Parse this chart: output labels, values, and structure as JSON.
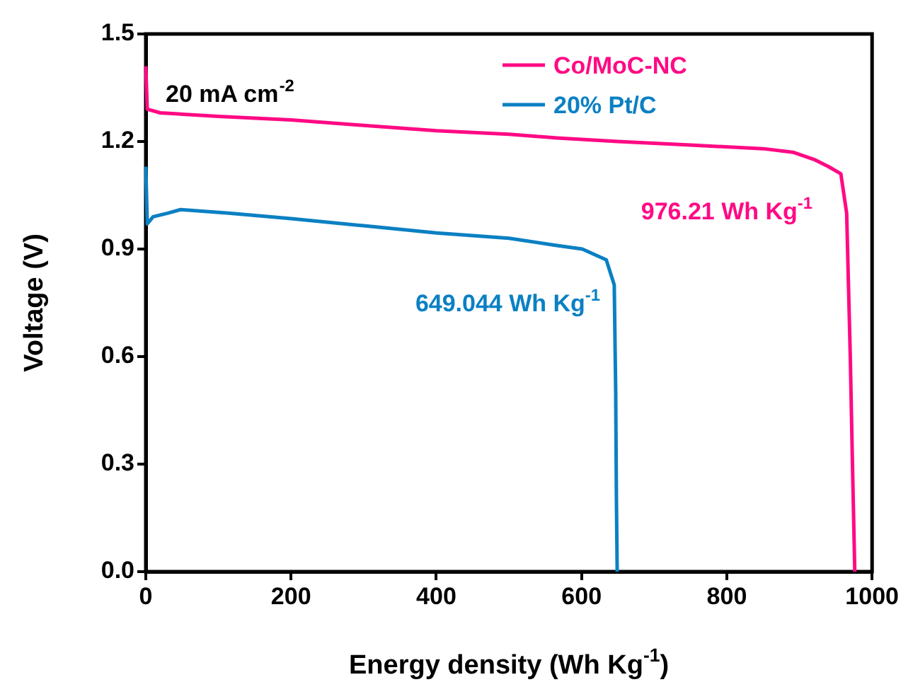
{
  "chart_data": {
    "type": "line",
    "xlabel": "Energy density (Wh Kg$^{-1}$)",
    "ylabel": "Voltage (V)",
    "annotations": [
      "20 mA cm$^{-2}$",
      "976.21 Wh Kg$^{-1}$",
      "649.044 Wh Kg$^{-1}$"
    ],
    "series": [
      {
        "name": "Co/MoC-NC",
        "color": "#ff0a84",
        "x": [
          0,
          2,
          20,
          100,
          200,
          300,
          400,
          500,
          566,
          650,
          750,
          850,
          891,
          920,
          940,
          957,
          965,
          970,
          973,
          976.21
        ],
        "values": [
          1.41,
          1.29,
          1.28,
          1.27,
          1.26,
          1.245,
          1.23,
          1.22,
          1.21,
          1.2,
          1.19,
          1.18,
          1.17,
          1.15,
          1.13,
          1.11,
          1.0,
          0.6,
          0.3,
          0
        ]
      },
      {
        "name": "20% Pt/C",
        "color": "#0b80c3",
        "x": [
          0,
          2,
          10,
          30,
          48,
          114,
          200,
          300,
          400,
          500,
          566,
          601,
          634,
          645,
          647,
          648,
          649.044
        ],
        "values": [
          1.13,
          0.97,
          0.99,
          1.0,
          1.01,
          1.0,
          0.985,
          0.965,
          0.945,
          0.93,
          0.91,
          0.9,
          0.87,
          0.8,
          0.5,
          0.2,
          0
        ]
      }
    ],
    "xlim": [
      0,
      1000
    ],
    "xticks": [
      0,
      200,
      400,
      600,
      800,
      1000
    ],
    "ylim": [
      0,
      1.5
    ],
    "yticks": [
      {
        "value": 0,
        "label": "0.0"
      },
      0.3,
      0.6,
      0.9,
      1.2,
      1.5
    ],
    "grid": false,
    "legend": "top right",
    "marker": "none",
    "line_style": "solid"
  }
}
